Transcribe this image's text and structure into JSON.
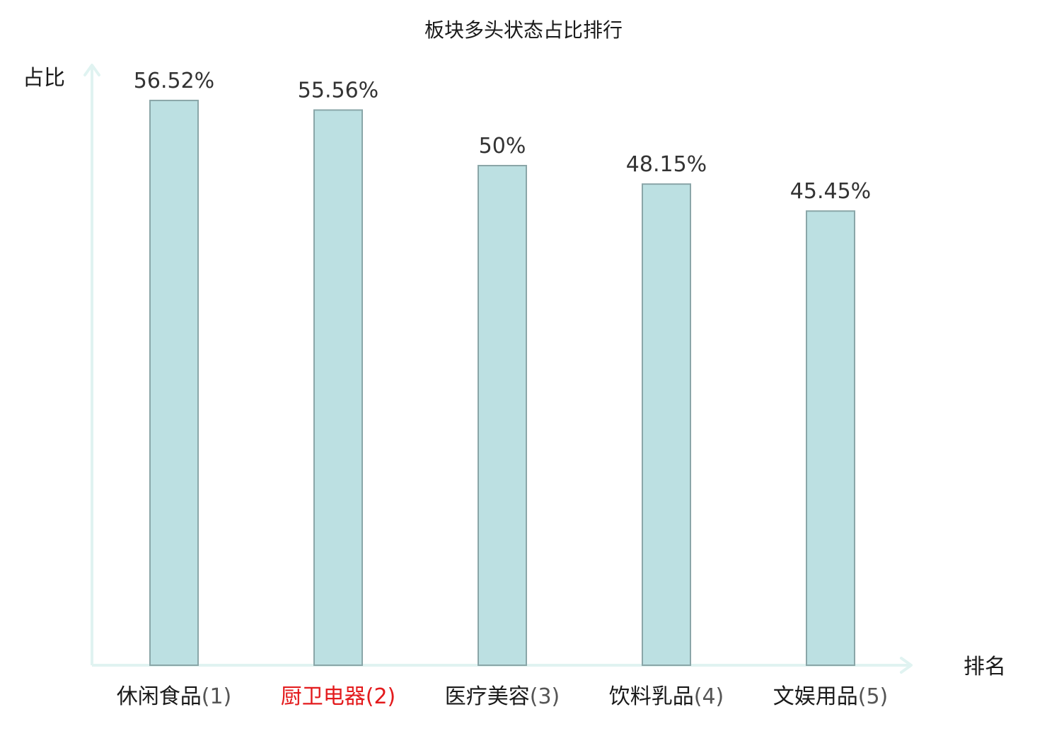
{
  "chart_data": {
    "type": "bar",
    "title": "板块多头状态占比排行",
    "ylabel": "占比",
    "xlabel": "排名",
    "ylim": [
      0,
      60
    ],
    "grid": false,
    "categories": [
      "休闲食品",
      "厨卫电器",
      "医疗美容",
      "饮料乳品",
      "文娱用品"
    ],
    "ranks": [
      "(1)",
      "(2)",
      "(3)",
      "(4)",
      "(5)"
    ],
    "values": [
      56.52,
      55.56,
      50,
      48.15,
      45.45
    ],
    "value_labels": [
      "56.52%",
      "55.56%",
      "50%",
      "48.15%",
      "45.45%"
    ],
    "highlight_index": 1,
    "colors": {
      "bar_fill": "#bce0e2",
      "bar_stroke": "#8aa6a8",
      "axis": "#e0f3f1",
      "highlight": "#e31a1c",
      "label": "#1a1a1a",
      "rank": "#555555",
      "value": "#333333"
    }
  }
}
